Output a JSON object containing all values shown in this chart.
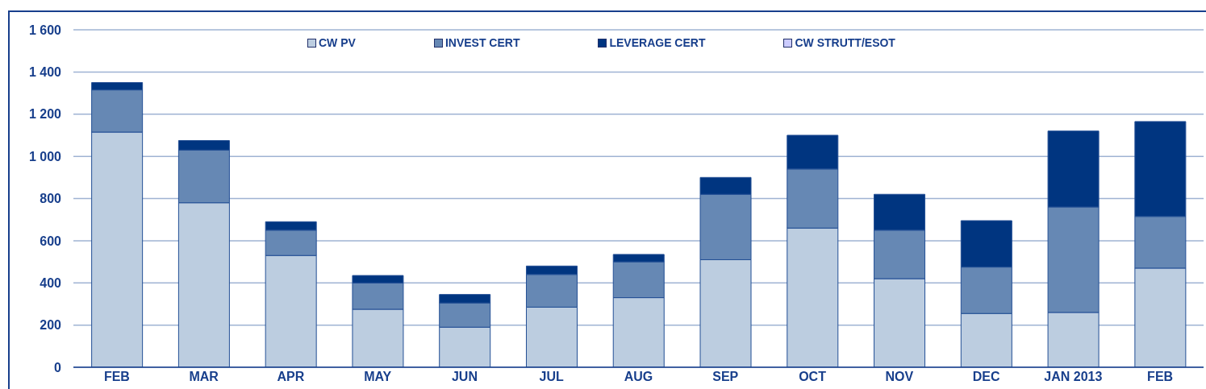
{
  "chart_data": {
    "type": "bar",
    "stacked": true,
    "categories": [
      "FEB",
      "MAR",
      "APR",
      "MAY",
      "JUN",
      "JUL",
      "AUG",
      "SEP",
      "OCT",
      "NOV",
      "DEC",
      "JAN 2013",
      "FEB"
    ],
    "series": [
      {
        "name": "CW PV",
        "color": "#bccde0",
        "values": [
          1115,
          780,
          530,
          275,
          190,
          285,
          330,
          510,
          660,
          420,
          255,
          260,
          470
        ]
      },
      {
        "name": "INVEST CERT",
        "color": "#6688b4",
        "values": [
          200,
          250,
          120,
          125,
          115,
          155,
          170,
          310,
          280,
          230,
          220,
          500,
          245
        ]
      },
      {
        "name": "LEVERAGE CERT",
        "color": "#003580",
        "values": [
          35,
          45,
          40,
          35,
          40,
          40,
          35,
          80,
          160,
          170,
          220,
          360,
          450
        ]
      },
      {
        "name": "CW STRUTT/ESOT",
        "color": "#ccccff",
        "values": [
          0,
          0,
          0,
          0,
          0,
          0,
          0,
          0,
          0,
          0,
          0,
          0,
          0
        ]
      }
    ],
    "ylim": [
      0,
      1600
    ],
    "yticks": [
      0,
      200,
      400,
      600,
      800,
      {
        "value": 1000,
        "label": "1 000"
      },
      {
        "value": 1200,
        "label": "1 200"
      },
      {
        "value": 1400,
        "label": "1 400"
      },
      {
        "value": 1600,
        "label": "1 600"
      }
    ],
    "grid": "y",
    "legend": "top"
  }
}
